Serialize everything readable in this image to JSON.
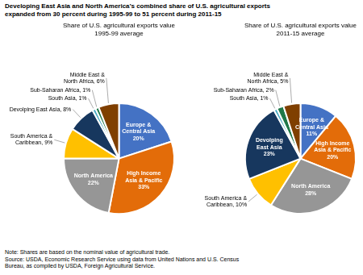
{
  "title": "Developing East Asia and North America’s combined share of U.S. agricultural exports\nexpanded from 30 percent during 1995-99 to 51 percent during 2011-15",
  "note": "Note: Shares are based on the nominal value of agricultural trade.\nSource: USDA, Economic Research Service using data from United Nations and U.S. Census\nBureau, as compiled by USDA, Foreign Agricultural Service.",
  "chart_data": [
    {
      "type": "pie",
      "title": "Share of U.S. agricultural exports value\n1995-99 average",
      "categories": [
        "Europe &\nCentral Asia\n20%",
        "High Income\nAsia & Pacific\n33%",
        "North America\n22%",
        "South America &\nCaribbean, 9%",
        "Devolping East Asia, 8%",
        "South Asia, 1%",
        "Sub-Saharan Africa, 1%",
        "Middle East &\nNorth Africa, 6%"
      ],
      "values": [
        20,
        33,
        22,
        9,
        8,
        1,
        1,
        6
      ],
      "colors": [
        "#4472C4",
        "#E36C09",
        "#969696",
        "#FFC000",
        "#17375E",
        "#4BACC6",
        "#1F7849",
        "#7F3F00"
      ]
    },
    {
      "type": "pie",
      "title": "Share of U.S. agricultural exports value\n2011-15 average",
      "categories": [
        "Europe &\nCentral Asia\n11%",
        "High Income\nAsia & Pacific\n20%",
        "North America\n28%",
        "South America &\nCaribbean, 10%",
        "Devolping\nEast Asia\n23%",
        "South Asia, 1%",
        "Sub-Saharan Africa, 2%",
        "Middle East &\nNorth Africa, 5%"
      ],
      "values": [
        11,
        20,
        28,
        10,
        23,
        1,
        2,
        5
      ],
      "colors": [
        "#4472C4",
        "#E36C09",
        "#969696",
        "#FFC000",
        "#17375E",
        "#4BACC6",
        "#1F7849",
        "#7F3F00"
      ]
    }
  ]
}
